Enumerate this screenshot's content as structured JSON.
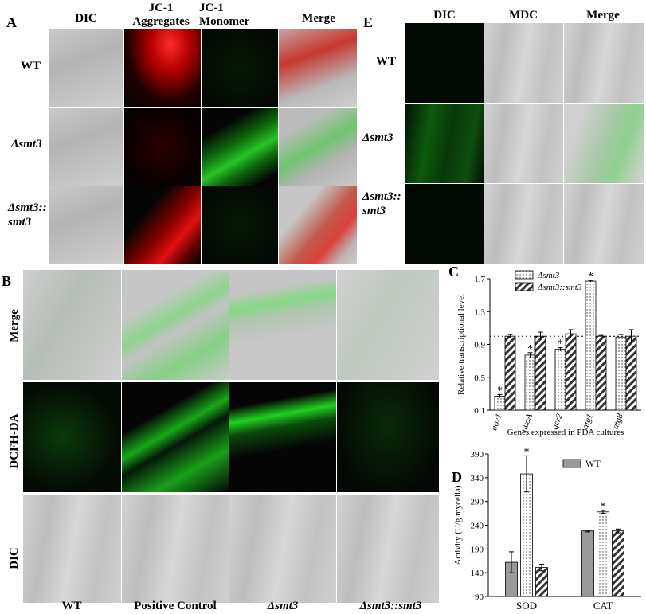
{
  "panel_a": {
    "label": "A",
    "col_headers": [
      "DIC",
      "JC-1\nAggregates",
      "JC-1\nMonomer",
      "Merge"
    ],
    "row_labels": [
      "WT",
      "Δsmt3",
      "Δsmt3::\nsmt3"
    ]
  },
  "panel_e": {
    "label": "E",
    "col_headers": [
      "DIC",
      "MDC",
      "Merge"
    ],
    "row_labels": [
      "WT",
      "Δsmt3",
      "Δsmt3::\nsmt3"
    ]
  },
  "panel_b": {
    "label": "B",
    "row_labels": [
      "Merge",
      "DCFH-DA",
      "DIC"
    ],
    "col_labels": [
      "WT",
      "Positive Control",
      "Δsmt3",
      "Δsmt3::smt3"
    ]
  },
  "chart_c": {
    "label": "C",
    "type": "bar",
    "ylabel": "Relative transcriptional level",
    "xlabel": "Genes expressed in PDA cultures",
    "categories": [
      "aox1",
      "nuoA",
      "qcr2",
      "atg1",
      "atg8"
    ],
    "series": [
      {
        "name": "Δsmt3",
        "values": [
          0.27,
          0.77,
          0.84,
          1.67,
          0.99
        ],
        "errors": [
          0.02,
          0.03,
          0.02,
          0.01,
          0.03
        ]
      },
      {
        "name": "Δsmt3::smt3",
        "values": [
          1.0,
          1.0,
          1.03,
          1.0,
          1.0
        ],
        "errors": [
          0.02,
          0.05,
          0.05,
          0.01,
          0.08
        ]
      }
    ],
    "ylim": [
      0.0,
      1.7
    ],
    "yticks": [
      "0.1",
      "0.5",
      "0.9",
      "1.3",
      "1.7"
    ],
    "reference_line": 1.0,
    "significance": [
      "*",
      "*",
      "*",
      "*",
      ""
    ]
  },
  "chart_d": {
    "label": "D",
    "type": "bar",
    "ylabel": "Activity (U/g mycelia)",
    "categories": [
      "SOD",
      "CAT"
    ],
    "series": [
      {
        "name": "WT",
        "values": [
          162,
          228
        ],
        "errors": [
          22,
          2
        ]
      },
      {
        "name": "",
        "values": [
          348,
          268
        ],
        "errors": [
          38,
          3
        ]
      },
      {
        "name": "",
        "values": [
          151,
          228
        ],
        "errors": [
          7,
          4
        ]
      }
    ],
    "ylim": [
      90,
      390
    ],
    "yticks": [
      "90",
      "140",
      "190",
      "240",
      "290",
      "340",
      "390"
    ],
    "significance": [
      "*",
      "*"
    ]
  }
}
